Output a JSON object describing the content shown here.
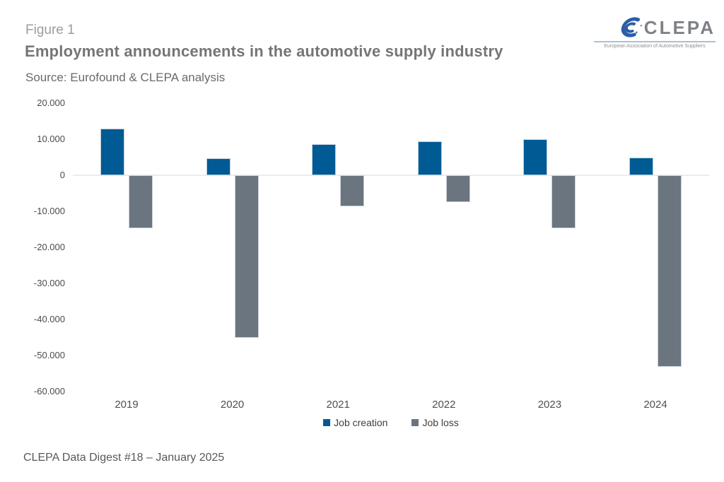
{
  "header": {
    "figure_label": "Figure 1",
    "title": "Employment announcements in the automotive supply industry",
    "source": "Source: Eurofound & CLEPA analysis"
  },
  "logo": {
    "name": "CLEPA",
    "tagline": "European Association of Automotive Suppliers",
    "blue": "#2b5da6"
  },
  "chart_data": {
    "type": "bar",
    "title": "Employment announcements in the automotive supply industry",
    "categories": [
      "2019",
      "2020",
      "2021",
      "2022",
      "2023",
      "2024"
    ],
    "series": [
      {
        "name": "Job creation",
        "color": "#005a93",
        "values": [
          13000,
          4700,
          8600,
          9500,
          10000,
          5000
        ]
      },
      {
        "name": "Job loss",
        "color": "#6b757f",
        "values": [
          -14700,
          -45000,
          -8600,
          -7400,
          -14700,
          -53200
        ]
      }
    ],
    "xlabel": "",
    "ylabel": "",
    "ylim": [
      -60000,
      20000
    ],
    "grid": false,
    "legend_position": "bottom",
    "yticks": [
      {
        "value": 20000,
        "label": "20.000"
      },
      {
        "value": 10000,
        "label": "10.000"
      },
      {
        "value": 0,
        "label": "0"
      },
      {
        "value": -10000,
        "label": "-10.000"
      },
      {
        "value": -20000,
        "label": "-20.000"
      },
      {
        "value": -30000,
        "label": "-30.000"
      },
      {
        "value": -40000,
        "label": "-40.000"
      },
      {
        "value": -50000,
        "label": "-50.000"
      },
      {
        "value": -60000,
        "label": "-60.000"
      }
    ]
  },
  "footer": {
    "text": "CLEPA Data Digest #18 – January 2025"
  }
}
